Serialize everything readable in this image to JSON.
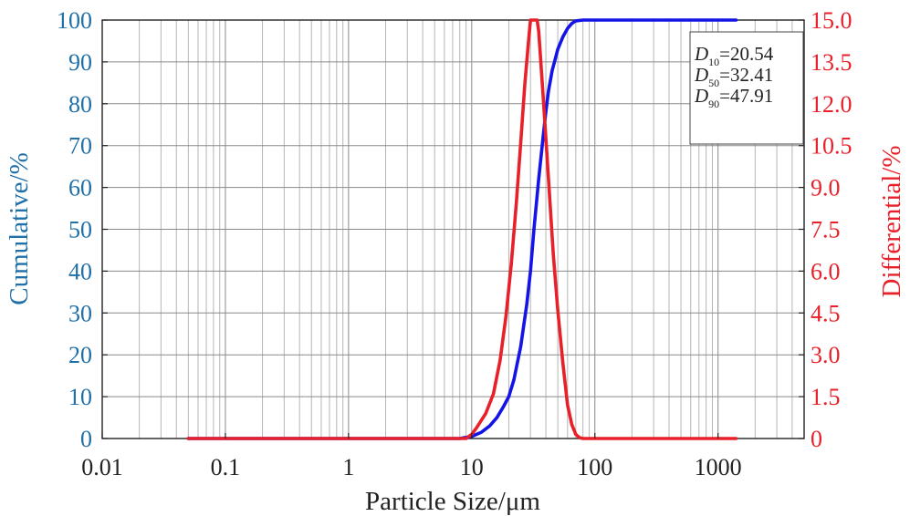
{
  "chart_data": {
    "type": "line",
    "xscale": "log",
    "xlim": [
      0.01,
      5000
    ],
    "xlabel": "Particle Size/μm",
    "x_ticks": [
      {
        "value": 0.01,
        "label": "0.01"
      },
      {
        "value": 0.1,
        "label": "0.1"
      },
      {
        "value": 1,
        "label": "1"
      },
      {
        "value": 10,
        "label": "10"
      },
      {
        "value": 100,
        "label": "100"
      },
      {
        "value": 1000,
        "label": "1000"
      }
    ],
    "y_left": {
      "label": "Cumulative/%",
      "range": [
        0,
        100
      ],
      "ticks": [
        "0",
        "10",
        "20",
        "30",
        "40",
        "50",
        "60",
        "70",
        "80",
        "90",
        "100"
      ],
      "color": "#1f6fa8"
    },
    "y_right": {
      "label": "Differential/%",
      "range": [
        0,
        15
      ],
      "ticks": [
        "0",
        "1.5",
        "3.0",
        "4.5",
        "6.0",
        "7.5",
        "9.0",
        "10.5",
        "12.0",
        "13.5",
        "15.0"
      ],
      "color": "#e8202a"
    },
    "grid": true,
    "series": [
      {
        "name": "Cumulative",
        "axis": "left",
        "color": "#1414e6",
        "x": [
          0.05,
          1,
          5,
          8,
          10,
          12,
          14,
          16,
          18,
          20,
          22,
          25,
          28,
          30,
          32,
          35,
          38,
          40,
          42,
          45,
          48,
          50,
          55,
          60,
          65,
          70,
          80,
          100,
          200,
          500,
          1000,
          1400
        ],
        "y": [
          0,
          0,
          0,
          0,
          0.5,
          1.5,
          3,
          5,
          7.5,
          10,
          14,
          22,
          32,
          40,
          50,
          62,
          72,
          78,
          83,
          88,
          91,
          93,
          96,
          98,
          99.2,
          99.8,
          100,
          100,
          100,
          100,
          100,
          100
        ]
      },
      {
        "name": "Differential",
        "axis": "right",
        "color": "#e8202a",
        "x": [
          0.05,
          1,
          5,
          9,
          10,
          11,
          13,
          15,
          17,
          19,
          21,
          23,
          25,
          27,
          29,
          30,
          31,
          32,
          33,
          34,
          35,
          36,
          38,
          40,
          43,
          46,
          50,
          55,
          60,
          65,
          70,
          75,
          80,
          100,
          500,
          1000,
          1400
        ],
        "y": [
          0,
          0,
          0,
          0,
          0.15,
          0.4,
          0.9,
          1.6,
          2.8,
          4.4,
          6.3,
          8.4,
          10.6,
          12.7,
          14.3,
          15.0,
          15.0,
          15.0,
          15.0,
          15.0,
          14.6,
          13.8,
          12.3,
          10.8,
          8.6,
          6.6,
          4.6,
          2.7,
          1.2,
          0.5,
          0.15,
          0.03,
          0,
          0,
          0,
          0,
          0
        ]
      }
    ],
    "annotation": {
      "lines": [
        {
          "symbol": "D",
          "sub": "10",
          "value": "=20.54"
        },
        {
          "symbol": "D",
          "sub": "50",
          "value": "=32.41"
        },
        {
          "symbol": "D",
          "sub": "90",
          "value": "=47.91"
        }
      ],
      "position": "top-right"
    }
  }
}
